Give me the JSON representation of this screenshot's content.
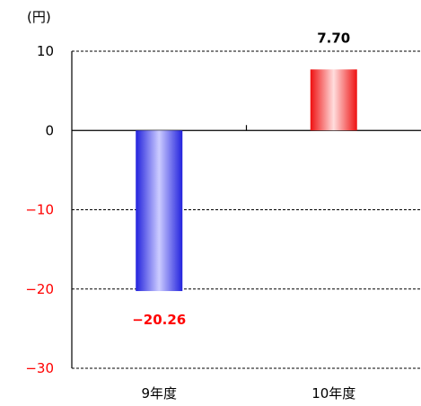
{
  "chart_data": {
    "type": "bar",
    "unit_label": "(円)",
    "categories": [
      "9年度",
      "10年度"
    ],
    "values": [
      -20.26,
      7.7
    ],
    "data_labels": [
      "−20.26",
      "7.70"
    ],
    "ylim": [
      -30,
      10
    ],
    "y_ticks": [
      {
        "value": 10,
        "label": "10"
      },
      {
        "value": 0,
        "label": "0"
      },
      {
        "value": -10,
        "label": "−10"
      },
      {
        "value": -20,
        "label": "−20"
      },
      {
        "value": -30,
        "label": "−30"
      }
    ],
    "grid": "dashed horizontal",
    "colors": {
      "negative_bar": "#3333ee",
      "positive_bar": "#ee3333",
      "negative_text": "#ff0000",
      "positive_text": "#000000",
      "axis": "#000000"
    },
    "title": "",
    "xlabel": "",
    "ylabel": ""
  }
}
